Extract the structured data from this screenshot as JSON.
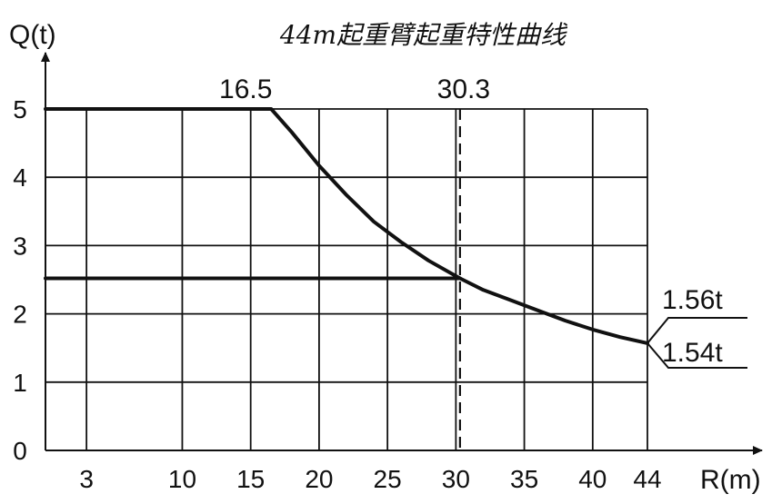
{
  "chart_data": {
    "type": "line",
    "title": "44m起重臂起重特性曲线",
    "xlabel": "R(m)",
    "ylabel": "Q(t)",
    "xlim": [
      0,
      44
    ],
    "ylim": [
      0,
      5
    ],
    "x_ticks": [
      3,
      10,
      15,
      20,
      25,
      30,
      35,
      40,
      44
    ],
    "y_ticks": [
      0,
      1,
      2,
      3,
      4,
      5
    ],
    "grid": true,
    "series": [
      {
        "points": [
          [
            0,
            5
          ],
          [
            16.5,
            5
          ],
          [
            18,
            4.66
          ],
          [
            20,
            4.17
          ],
          [
            22,
            3.74
          ],
          [
            24,
            3.35
          ],
          [
            26,
            3.05
          ],
          [
            28,
            2.78
          ],
          [
            30.3,
            2.52
          ],
          [
            32,
            2.35
          ],
          [
            34,
            2.2
          ],
          [
            36,
            2.05
          ],
          [
            38,
            1.9
          ],
          [
            40,
            1.77
          ],
          [
            42,
            1.66
          ],
          [
            44,
            1.57
          ]
        ]
      },
      {
        "points": [
          [
            0,
            2.52
          ],
          [
            30.3,
            2.52
          ]
        ]
      }
    ],
    "reference_lines": [
      {
        "x": 30.3,
        "style": "dashed"
      }
    ],
    "annotations": [
      {
        "text": "16.5",
        "x": 16.5
      },
      {
        "text": "30.3",
        "x": 30.3
      },
      {
        "text": "1.56t"
      },
      {
        "text": "1.54t"
      }
    ]
  }
}
